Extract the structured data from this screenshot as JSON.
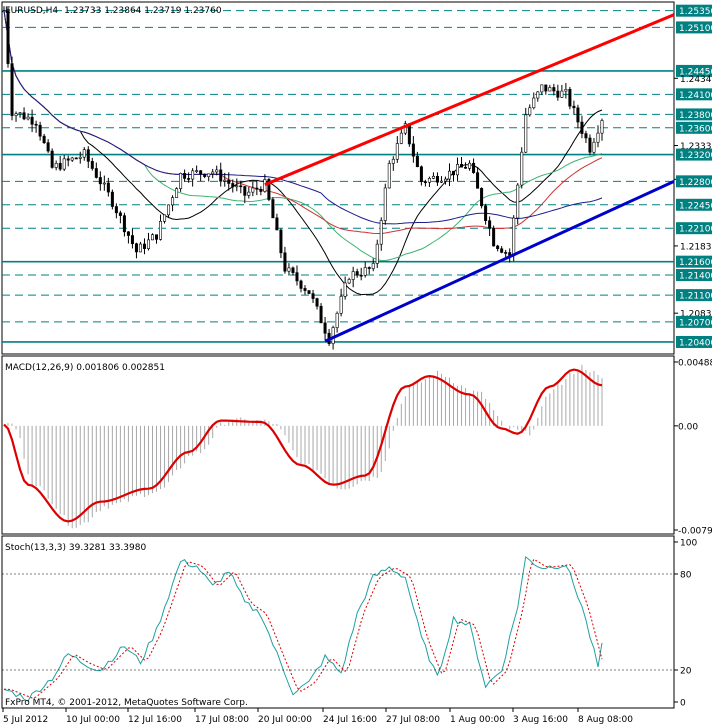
{
  "window": {
    "symbol_title": "EURUSD,H4",
    "ohlc": "1.23733 1.23864 1.23719 1.23760",
    "copyright": "FxPro MT4, © 2001-2012, MetaQuotes Software Corp."
  },
  "chart_data": [
    {
      "type": "candlestick",
      "title": "EURUSD,H4",
      "y_axis_labels": [
        "1.25350",
        "1.25100",
        "1.24450",
        "1.24340",
        "1.24100",
        "1.23800",
        "1.23600",
        "1.23335",
        "1.23200",
        "1.22830",
        "1.22800",
        "1.22450",
        "1.22100",
        "1.21835",
        "1.21600",
        "1.21400",
        "1.21100",
        "1.20830",
        "1.20700",
        "1.20400"
      ],
      "highlighted_levels": [
        1.2535,
        1.251,
        1.2445,
        1.241,
        1.238,
        1.236,
        1.232,
        1.228,
        1.2245,
        1.221,
        1.216,
        1.214,
        1.211,
        1.207,
        1.204
      ],
      "ylim": [
        1.2028,
        1.2542
      ],
      "colors": {
        "line_level": "#008080",
        "label_bg": "#008080",
        "ma_fast": "#000000",
        "ma_green": "#3cb371",
        "ma_red": "#cc3333",
        "ma_blue": "#1c1c8c",
        "resistance": "#ff0000",
        "support": "#0000cc",
        "bars": "#000000"
      }
    },
    {
      "type": "line",
      "title": "MACD(12,26,9) 0.001806 0.002851",
      "y_axis_labels": [
        "0.00488",
        "0.00",
        "-0.00796"
      ],
      "ylim": [
        -0.00796,
        0.00488
      ],
      "colors": {
        "signal": "#dd0000",
        "histogram": "#a8a8a8"
      }
    },
    {
      "type": "line",
      "title": "Stoch(13,3,3) 39.3281 33.3980",
      "y_axis_labels": [
        "100",
        "80",
        "20",
        "0"
      ],
      "ylim": [
        0,
        100
      ],
      "levels": [
        80,
        20
      ],
      "colors": {
        "main": "#20a0a0",
        "signal": "#dd0000"
      }
    }
  ],
  "x_axis_labels": [
    "5 Jul 2012",
    "10 Jul 00:00",
    "12 Jul 16:00",
    "17 Jul 08:00",
    "20 Jul 00:00",
    "24 Jul 16:00",
    "27 Jul 08:00",
    "1 Aug 00:00",
    "3 Aug 16:00",
    "8 Aug 08:00"
  ]
}
